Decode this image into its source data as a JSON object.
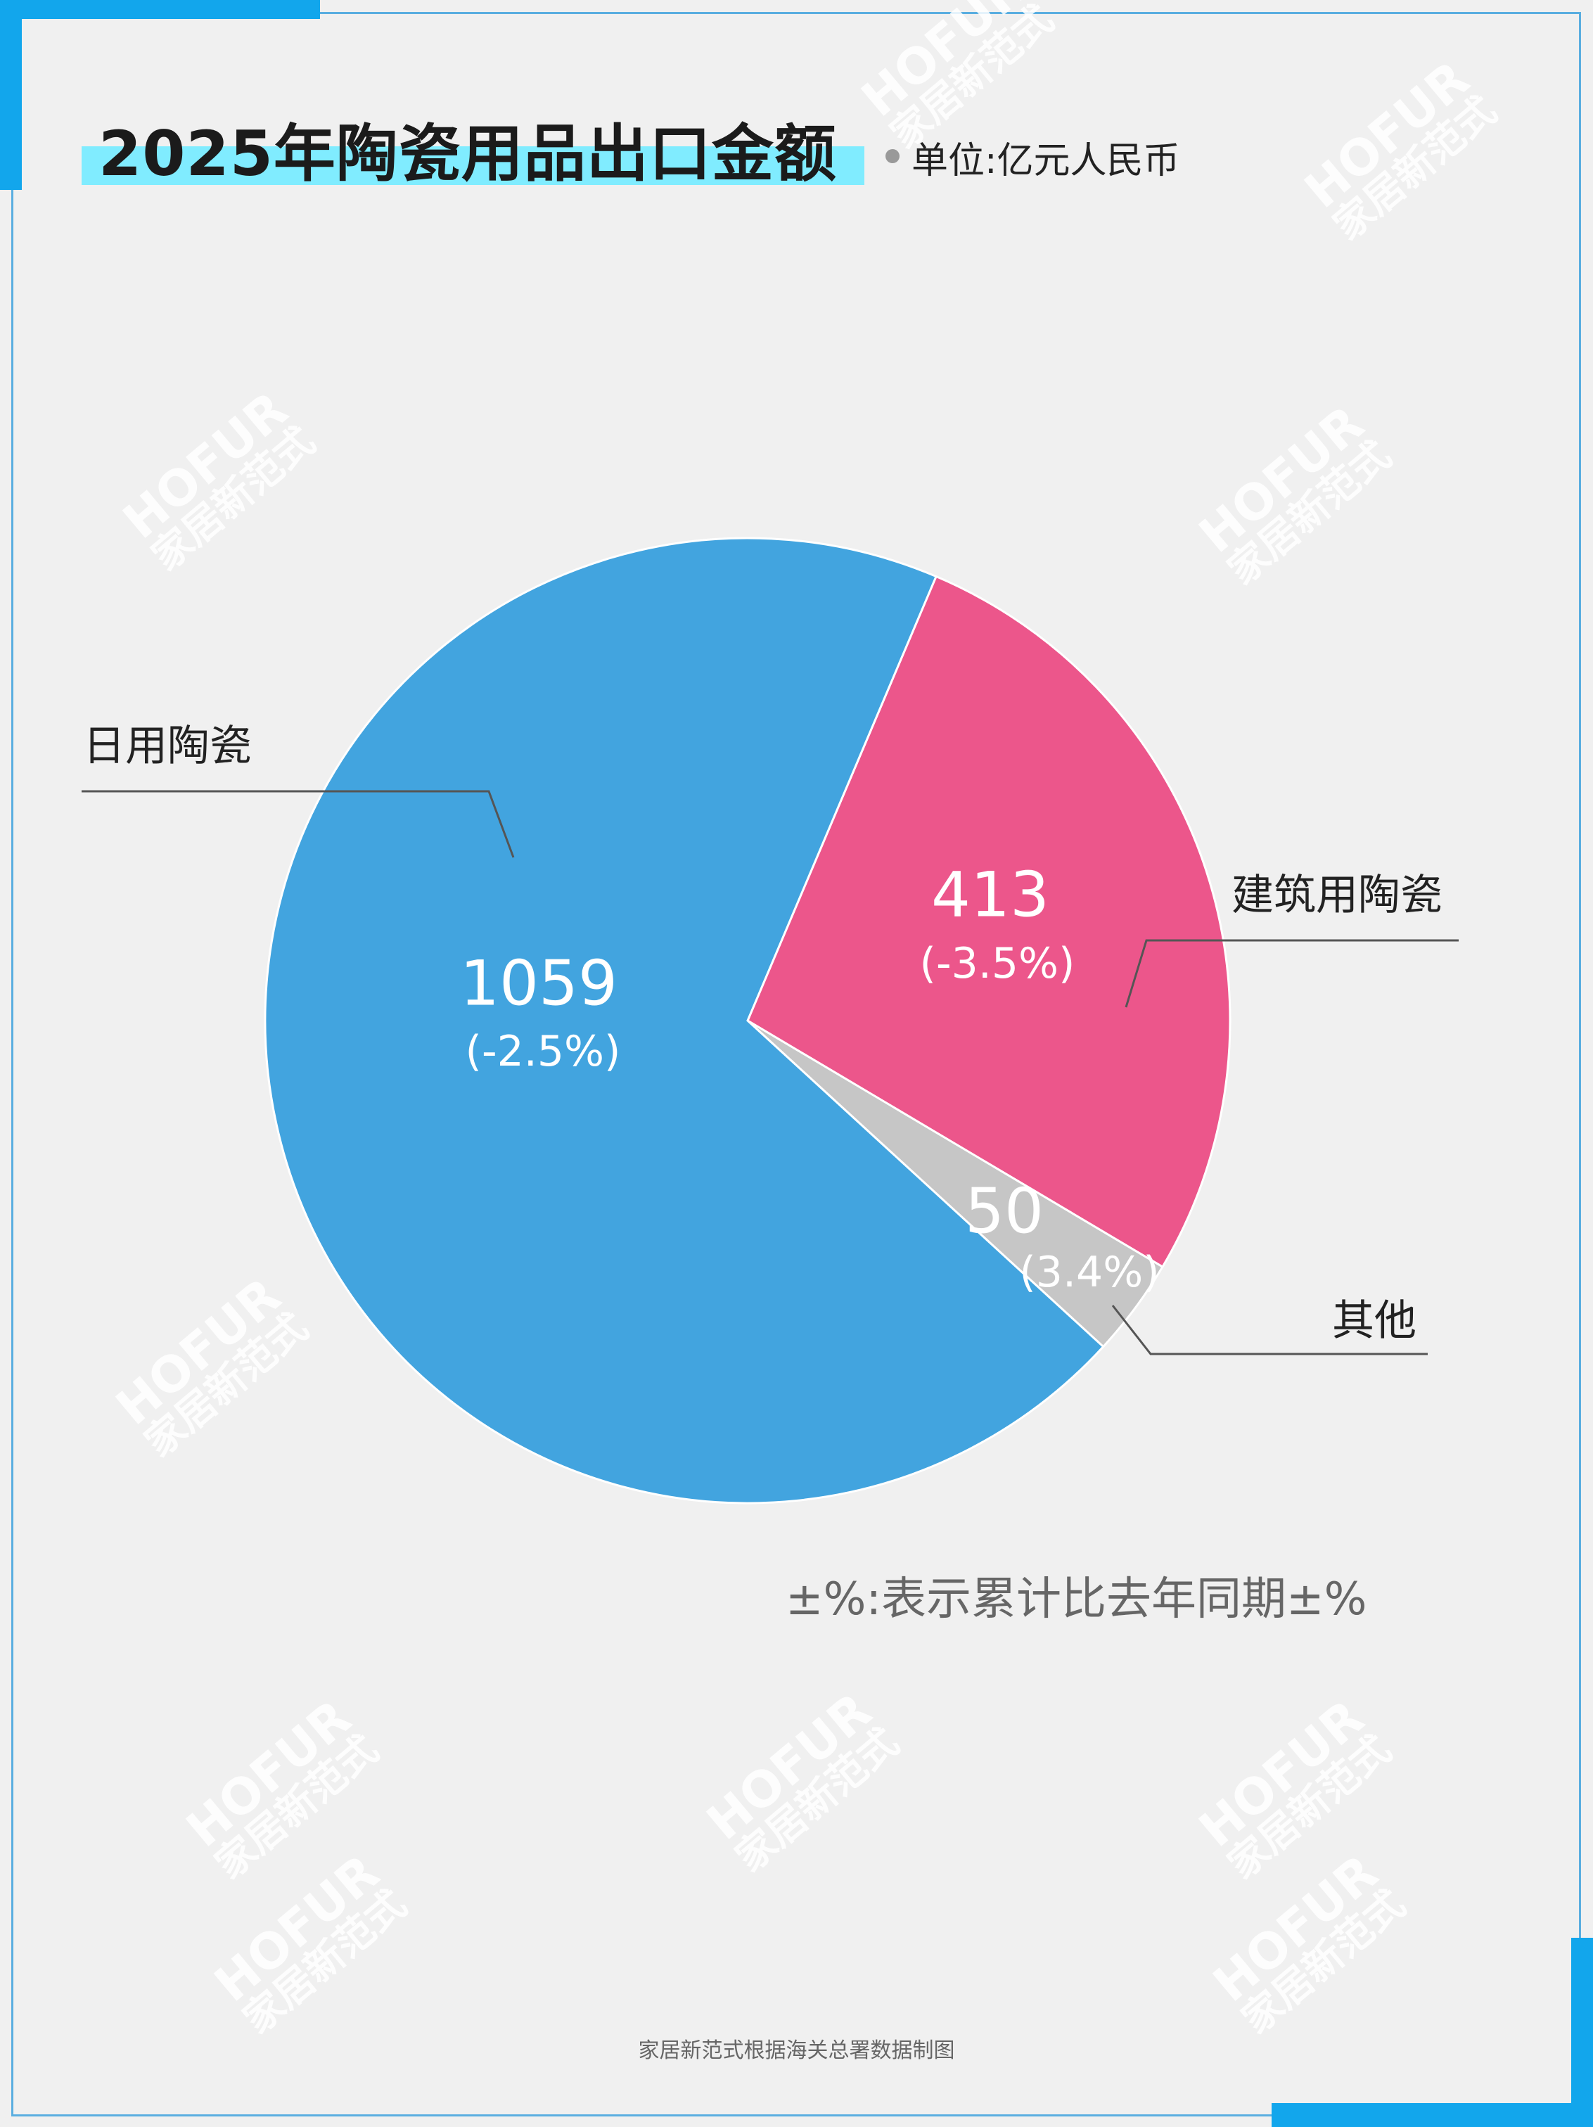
{
  "header": {
    "title": "2025年陶瓷用品出口金额",
    "unit": "单位:亿元人民币"
  },
  "chart_data": {
    "type": "pie",
    "title": "2025年陶瓷用品出口金额",
    "unit": "单位:亿元人民币",
    "slices": [
      {
        "name": "建筑用陶瓷",
        "value": 413,
        "change": "(-3.5%)",
        "color": "#ec568b"
      },
      {
        "name": "其他",
        "value": 50,
        "change": "(3.4%)",
        "color": "#c6c6c6"
      },
      {
        "name": "日用陶瓷",
        "value": 1059,
        "change": "(-2.5%)",
        "color": "#42a4df"
      }
    ],
    "value_labels": {
      "ceramics_daily": "1059",
      "ceramics_building": "413",
      "other": "50"
    },
    "change_labels": {
      "ceramics_daily": "(-2.5%)",
      "ceramics_building": "(-3.5%)",
      "other": "(3.4%)"
    }
  },
  "labels": {
    "daily": "日用陶瓷",
    "building": "建筑用陶瓷",
    "other": "其他"
  },
  "note": "±%:表示累计比去年同期±%",
  "footer": "家居新范式根据海关总署数据制图",
  "watermark": {
    "brand": "HOFUR",
    "name": "家居新范式"
  },
  "colors": {
    "accent": "#12a6ec",
    "title_highlight": "#80ecff"
  }
}
